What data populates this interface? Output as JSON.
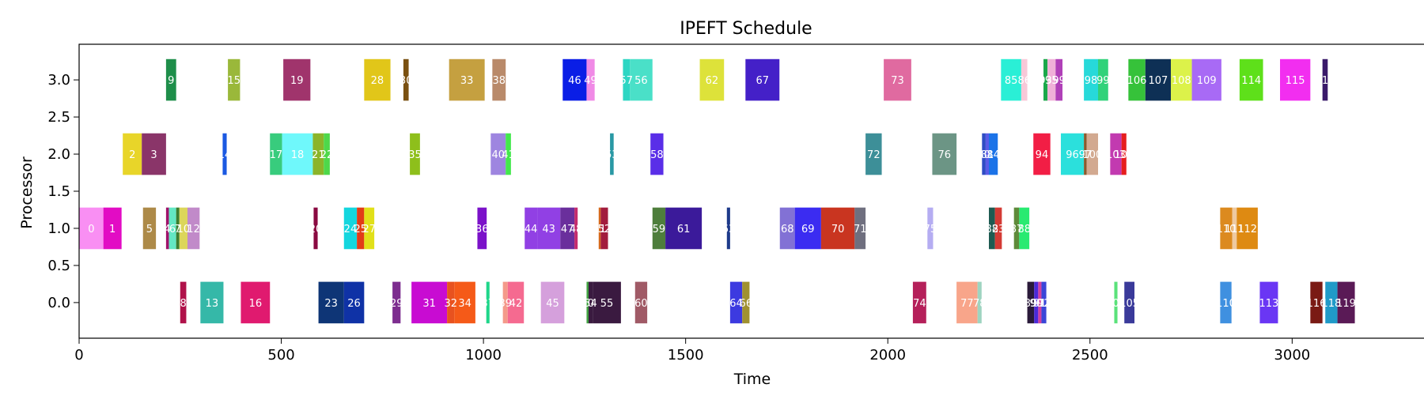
{
  "chart_data": {
    "type": "gantt",
    "title": "IPEFT Schedule",
    "xlabel": "Time",
    "ylabel": "Processor",
    "xlim": [
      0,
      3330
    ],
    "ylim": [
      -0.48,
      3.48
    ],
    "xticks": [
      "0",
      "500",
      "1000",
      "1500",
      "2000",
      "2500",
      "3000"
    ],
    "yticks": [
      "0.0",
      "0.5",
      "1.0",
      "1.5",
      "2.0",
      "2.5",
      "3.0"
    ],
    "tasks": [
      {
        "id": "0",
        "proc": 1,
        "start": 0,
        "end": 60,
        "color": "#f98ff3"
      },
      {
        "id": "1",
        "proc": 1,
        "start": 60,
        "end": 105,
        "color": "#e20cc4"
      },
      {
        "id": "5",
        "proc": 1,
        "start": 158,
        "end": 190,
        "color": "#ad8a48"
      },
      {
        "id": "4",
        "proc": 1,
        "start": 215,
        "end": 222,
        "color": "#a0126a"
      },
      {
        "id": "6",
        "proc": 1,
        "start": 222,
        "end": 240,
        "color": "#63e7c3"
      },
      {
        "id": "7",
        "proc": 1,
        "start": 240,
        "end": 248,
        "color": "#3c7d2f"
      },
      {
        "id": "10",
        "proc": 1,
        "start": 248,
        "end": 268,
        "color": "#dcd65a"
      },
      {
        "id": "12",
        "proc": 1,
        "start": 268,
        "end": 298,
        "color": "#c18ac9"
      },
      {
        "id": "20",
        "proc": 1,
        "start": 580,
        "end": 590,
        "color": "#8a0a41"
      },
      {
        "id": "24",
        "proc": 1,
        "start": 655,
        "end": 687,
        "color": "#14d6de"
      },
      {
        "id": "25",
        "proc": 1,
        "start": 687,
        "end": 705,
        "color": "#e23c17"
      },
      {
        "id": "27",
        "proc": 1,
        "start": 705,
        "end": 730,
        "color": "#e1e019"
      },
      {
        "id": "36",
        "proc": 1,
        "start": 985,
        "end": 1008,
        "color": "#7b12c9"
      },
      {
        "id": "44",
        "proc": 1,
        "start": 1102,
        "end": 1133,
        "color": "#9140e4"
      },
      {
        "id": "43",
        "proc": 1,
        "start": 1133,
        "end": 1190,
        "color": "#9140e4"
      },
      {
        "id": "47",
        "proc": 1,
        "start": 1190,
        "end": 1225,
        "color": "#6a2f9c"
      },
      {
        "id": "48",
        "proc": 1,
        "start": 1225,
        "end": 1233,
        "color": "#c42b6d"
      },
      {
        "id": "51",
        "proc": 1,
        "start": 1285,
        "end": 1290,
        "color": "#d4681e"
      },
      {
        "id": "52",
        "proc": 1,
        "start": 1290,
        "end": 1308,
        "color": "#a21c3d"
      },
      {
        "id": "59",
        "proc": 1,
        "start": 1418,
        "end": 1450,
        "color": "#4e7e3c"
      },
      {
        "id": "61",
        "proc": 1,
        "start": 1450,
        "end": 1540,
        "color": "#3b1a9a"
      },
      {
        "id": "63",
        "proc": 1,
        "start": 1602,
        "end": 1610,
        "color": "#1e3a8a"
      },
      {
        "id": "68",
        "proc": 1,
        "start": 1733,
        "end": 1770,
        "color": "#8271d5"
      },
      {
        "id": "69",
        "proc": 1,
        "start": 1770,
        "end": 1835,
        "color": "#3b2cf1"
      },
      {
        "id": "70",
        "proc": 1,
        "start": 1835,
        "end": 1918,
        "color": "#c93520"
      },
      {
        "id": "71",
        "proc": 1,
        "start": 1918,
        "end": 1945,
        "color": "#6f6f7f"
      },
      {
        "id": "75",
        "proc": 1,
        "start": 2098,
        "end": 2112,
        "color": "#b5adf2"
      },
      {
        "id": "82",
        "proc": 1,
        "start": 2250,
        "end": 2265,
        "color": "#1e5b52"
      },
      {
        "id": "83",
        "proc": 1,
        "start": 2265,
        "end": 2282,
        "color": "#d43a34"
      },
      {
        "id": "87",
        "proc": 1,
        "start": 2312,
        "end": 2325,
        "color": "#5f8a3a"
      },
      {
        "id": "88",
        "proc": 1,
        "start": 2325,
        "end": 2350,
        "color": "#29ea71"
      },
      {
        "id": "110",
        "proc": 1,
        "start": 2822,
        "end": 2852,
        "color": "#dc8a1f"
      },
      {
        "id": "111",
        "proc": 1,
        "start": 2852,
        "end": 2863,
        "color": "#eec9a0"
      },
      {
        "id": "112",
        "proc": 1,
        "start": 2863,
        "end": 2915,
        "color": "#de8a12"
      },
      {
        "id": "2",
        "proc": 2,
        "start": 108,
        "end": 155,
        "color": "#e8d529"
      },
      {
        "id": "3",
        "proc": 2,
        "start": 155,
        "end": 215,
        "color": "#8a3569"
      },
      {
        "id": "14",
        "proc": 2,
        "start": 355,
        "end": 365,
        "color": "#1b59e2"
      },
      {
        "id": "17",
        "proc": 2,
        "start": 472,
        "end": 502,
        "color": "#38cc7d"
      },
      {
        "id": "18",
        "proc": 2,
        "start": 502,
        "end": 578,
        "color": "#6ff8fb"
      },
      {
        "id": "21",
        "proc": 2,
        "start": 578,
        "end": 605,
        "color": "#8bb42a"
      },
      {
        "id": "22",
        "proc": 2,
        "start": 605,
        "end": 620,
        "color": "#4ed84a"
      },
      {
        "id": "35",
        "proc": 2,
        "start": 818,
        "end": 843,
        "color": "#8ebf1b"
      },
      {
        "id": "40",
        "proc": 2,
        "start": 1018,
        "end": 1055,
        "color": "#9e85e0"
      },
      {
        "id": "41",
        "proc": 2,
        "start": 1055,
        "end": 1068,
        "color": "#43e84d"
      },
      {
        "id": "53",
        "proc": 2,
        "start": 1313,
        "end": 1322,
        "color": "#2998a4"
      },
      {
        "id": "58",
        "proc": 2,
        "start": 1413,
        "end": 1445,
        "color": "#5a2ee8"
      },
      {
        "id": "72",
        "proc": 2,
        "start": 1945,
        "end": 1985,
        "color": "#3d8f98"
      },
      {
        "id": "76",
        "proc": 2,
        "start": 2110,
        "end": 2170,
        "color": "#6c9585"
      },
      {
        "id": "80",
        "proc": 2,
        "start": 2233,
        "end": 2242,
        "color": "#2f4cc4"
      },
      {
        "id": "81",
        "proc": 2,
        "start": 2242,
        "end": 2250,
        "color": "#5a5ae6"
      },
      {
        "id": "84",
        "proc": 2,
        "start": 2250,
        "end": 2272,
        "color": "#1b73e8"
      },
      {
        "id": "94",
        "proc": 2,
        "start": 2360,
        "end": 2402,
        "color": "#f21e45"
      },
      {
        "id": "96",
        "proc": 2,
        "start": 2428,
        "end": 2485,
        "color": "#2be0dc"
      },
      {
        "id": "97",
        "proc": 2,
        "start": 2485,
        "end": 2492,
        "color": "#8a5a2e"
      },
      {
        "id": "100",
        "proc": 2,
        "start": 2492,
        "end": 2520,
        "color": "#d2a990"
      },
      {
        "id": "103",
        "proc": 2,
        "start": 2550,
        "end": 2578,
        "color": "#c23ab0"
      },
      {
        "id": "104",
        "proc": 2,
        "start": 2578,
        "end": 2590,
        "color": "#e61e1e"
      },
      {
        "id": "8",
        "proc": 0,
        "start": 250,
        "end": 265,
        "color": "#b0124a"
      },
      {
        "id": "13",
        "proc": 0,
        "start": 300,
        "end": 357,
        "color": "#35b8a8"
      },
      {
        "id": "16",
        "proc": 0,
        "start": 400,
        "end": 472,
        "color": "#e01a6f"
      },
      {
        "id": "23",
        "proc": 0,
        "start": 592,
        "end": 655,
        "color": "#0e3576"
      },
      {
        "id": "26",
        "proc": 0,
        "start": 655,
        "end": 705,
        "color": "#0f32a6"
      },
      {
        "id": "29",
        "proc": 0,
        "start": 775,
        "end": 795,
        "color": "#7d2d8f"
      },
      {
        "id": "31",
        "proc": 0,
        "start": 822,
        "end": 910,
        "color": "#c80cd2"
      },
      {
        "id": "32",
        "proc": 0,
        "start": 910,
        "end": 928,
        "color": "#e8521f"
      },
      {
        "id": "34",
        "proc": 0,
        "start": 928,
        "end": 980,
        "color": "#f55a18"
      },
      {
        "id": "37",
        "proc": 0,
        "start": 1007,
        "end": 1015,
        "color": "#1fd68a"
      },
      {
        "id": "39",
        "proc": 0,
        "start": 1048,
        "end": 1060,
        "color": "#f49a8a"
      },
      {
        "id": "42",
        "proc": 0,
        "start": 1060,
        "end": 1100,
        "color": "#f56a90"
      },
      {
        "id": "45",
        "proc": 0,
        "start": 1142,
        "end": 1200,
        "color": "#d5a0dc"
      },
      {
        "id": "50",
        "proc": 0,
        "start": 1255,
        "end": 1260,
        "color": "#40a040"
      },
      {
        "id": "54",
        "proc": 0,
        "start": 1260,
        "end": 1270,
        "color": "#3a1a40"
      },
      {
        "id": "55",
        "proc": 0,
        "start": 1270,
        "end": 1340,
        "color": "#3a1a40"
      },
      {
        "id": "60",
        "proc": 0,
        "start": 1375,
        "end": 1405,
        "color": "#a05a66"
      },
      {
        "id": "64",
        "proc": 0,
        "start": 1610,
        "end": 1640,
        "color": "#3c3ae0"
      },
      {
        "id": "66",
        "proc": 0,
        "start": 1640,
        "end": 1658,
        "color": "#a09130"
      },
      {
        "id": "74",
        "proc": 0,
        "start": 2062,
        "end": 2095,
        "color": "#b5205a"
      },
      {
        "id": "77",
        "proc": 0,
        "start": 2170,
        "end": 2222,
        "color": "#f8a58a"
      },
      {
        "id": "78",
        "proc": 0,
        "start": 2222,
        "end": 2232,
        "color": "#9ed4c0"
      },
      {
        "id": "89",
        "proc": 0,
        "start": 2345,
        "end": 2362,
        "color": "#2a1a3a"
      },
      {
        "id": "90",
        "proc": 0,
        "start": 2362,
        "end": 2372,
        "color": "#4a2ad8"
      },
      {
        "id": "91",
        "proc": 0,
        "start": 2372,
        "end": 2380,
        "color": "#d040a0"
      },
      {
        "id": "92",
        "proc": 0,
        "start": 2380,
        "end": 2392,
        "color": "#3a46d8"
      },
      {
        "id": "101",
        "proc": 0,
        "start": 2560,
        "end": 2568,
        "color": "#5ae27a"
      },
      {
        "id": "105",
        "proc": 0,
        "start": 2585,
        "end": 2610,
        "color": "#3a3a9a"
      },
      {
        "id": "110",
        "proc": 0,
        "start": 2822,
        "end": 2850,
        "color": "#3f90e0"
      },
      {
        "id": "113",
        "proc": 0,
        "start": 2920,
        "end": 2965,
        "color": "#6a36f4"
      },
      {
        "id": "116",
        "proc": 0,
        "start": 3045,
        "end": 3075,
        "color": "#7a1a14"
      },
      {
        "id": "118",
        "proc": 0,
        "start": 3082,
        "end": 3112,
        "color": "#209ac8"
      },
      {
        "id": "119",
        "proc": 0,
        "start": 3112,
        "end": 3155,
        "color": "#5a1a56"
      },
      {
        "id": "9",
        "proc": 3,
        "start": 215,
        "end": 240,
        "color": "#1e8e4a"
      },
      {
        "id": "15",
        "proc": 3,
        "start": 368,
        "end": 398,
        "color": "#9ab83a"
      },
      {
        "id": "19",
        "proc": 3,
        "start": 505,
        "end": 572,
        "color": "#a0346c"
      },
      {
        "id": "28",
        "proc": 3,
        "start": 705,
        "end": 770,
        "color": "#e1c619"
      },
      {
        "id": "30",
        "proc": 3,
        "start": 802,
        "end": 815,
        "color": "#7a5010"
      },
      {
        "id": "33",
        "proc": 3,
        "start": 915,
        "end": 1003,
        "color": "#c5a040"
      },
      {
        "id": "38",
        "proc": 3,
        "start": 1022,
        "end": 1055,
        "color": "#b98a6a"
      },
      {
        "id": "46",
        "proc": 3,
        "start": 1196,
        "end": 1255,
        "color": "#0a1ee6"
      },
      {
        "id": "49",
        "proc": 3,
        "start": 1255,
        "end": 1275,
        "color": "#f08ae6"
      },
      {
        "id": "57",
        "proc": 3,
        "start": 1345,
        "end": 1362,
        "color": "#2dd6c3"
      },
      {
        "id": "56",
        "proc": 3,
        "start": 1362,
        "end": 1418,
        "color": "#4ae0c8"
      },
      {
        "id": "62",
        "proc": 3,
        "start": 1535,
        "end": 1595,
        "color": "#dde23a"
      },
      {
        "id": "67",
        "proc": 3,
        "start": 1648,
        "end": 1732,
        "color": "#4420c8"
      },
      {
        "id": "73",
        "proc": 3,
        "start": 1990,
        "end": 2058,
        "color": "#e06aa0"
      },
      {
        "id": "85",
        "proc": 3,
        "start": 2280,
        "end": 2330,
        "color": "#2aefd6"
      },
      {
        "id": "86",
        "proc": 3,
        "start": 2330,
        "end": 2345,
        "color": "#f8c8d8"
      },
      {
        "id": "93",
        "proc": 3,
        "start": 2385,
        "end": 2395,
        "color": "#1aa84a"
      },
      {
        "id": "95",
        "proc": 3,
        "start": 2395,
        "end": 2415,
        "color": "#f0b0d8"
      },
      {
        "id": "99",
        "proc": 3,
        "start": 2415,
        "end": 2432,
        "color": "#b040b8"
      },
      {
        "id": "98",
        "proc": 3,
        "start": 2485,
        "end": 2520,
        "color": "#27d9d9"
      },
      {
        "id": "99",
        "proc": 3,
        "start": 2520,
        "end": 2545,
        "color": "#30d27a"
      },
      {
        "id": "106",
        "proc": 3,
        "start": 2595,
        "end": 2637,
        "color": "#36c23a"
      },
      {
        "id": "107",
        "proc": 3,
        "start": 2637,
        "end": 2700,
        "color": "#0e3055"
      },
      {
        "id": "108",
        "proc": 3,
        "start": 2700,
        "end": 2752,
        "color": "#dcf24a"
      },
      {
        "id": "109",
        "proc": 3,
        "start": 2752,
        "end": 2825,
        "color": "#a86af5"
      },
      {
        "id": "114",
        "proc": 3,
        "start": 2870,
        "end": 2928,
        "color": "#5ee01a"
      },
      {
        "id": "115",
        "proc": 3,
        "start": 2970,
        "end": 3045,
        "color": "#f22ef0"
      },
      {
        "id": "117",
        "proc": 3,
        "start": 3075,
        "end": 3088,
        "color": "#3a1a6a"
      }
    ]
  }
}
